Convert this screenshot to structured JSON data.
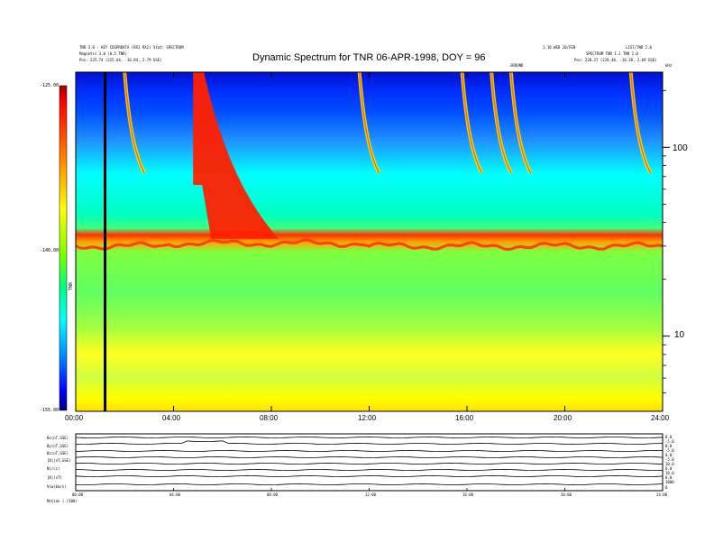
{
  "header": {
    "title": "Dynamic Spectrum for TNR 06-APR-1998, DOY = 96",
    "left_line1": "TNR 3.0 - KEY CDSPRDATA (RX1 RX2) Stat: SPECTRUM",
    "left_line2": "Magnetic 3.0 (0.5 TNR)",
    "left_pos": "Pos:   225.74 (225.64, -16.84, 2.79 GSE)",
    "right_line1": "1.10 WED 20/FEB",
    "right_line2": "LIST/TNR 2.0",
    "right_line3": "SPECTRUM   TNR 1.2 TNR  2.0",
    "right_pos": "Pos:   228.27 (228.48, -16.38, 2.69 GSE)",
    "mid_label": "GROUND",
    "unit_label": "kHz"
  },
  "colorbar": {
    "ticks": [
      "-125.00",
      "-140.00",
      "-155.00"
    ],
    "label": "TNR",
    "colors": [
      "#a00000",
      "#ff0000",
      "#ff8000",
      "#ffff00",
      "#80ff00",
      "#00ff80",
      "#00ffff",
      "#0080ff",
      "#0000ff",
      "#000080"
    ]
  },
  "chart_data": {
    "type": "heatmap",
    "title": "Dynamic Spectrum for TNR 06-APR-1998, DOY = 96",
    "xlabel": "",
    "ylabel": "kHz",
    "x_ticks": [
      "00:00",
      "04:00",
      "08:00",
      "12:00",
      "16:00",
      "20:00",
      "24:00"
    ],
    "xlim": [
      0,
      24
    ],
    "y_ticks": [
      "100",
      "10"
    ],
    "y_scale": "log",
    "ylim": [
      4,
      250
    ],
    "colorbar_range_db": [
      -155,
      -125
    ],
    "plasma_line_khz": 30,
    "marker_time_hours": 1.2,
    "type_iii_bursts_start_hours": [
      2.0,
      4.8,
      11.6,
      15.8,
      17.0,
      17.8,
      22.7
    ],
    "strong_burst_start_hours": 4.8
  },
  "bottom_panel": {
    "labels": [
      "Bx(nT,GSE)",
      "By(nT,GSE)",
      "Bz(nT,GSE)",
      "|B|(nT,GSE)",
      "N(/cc)",
      "|B|(nT)",
      "Vsw(km/s)"
    ],
    "right_labels": [
      "0.0",
      "-5.0",
      "0.0",
      "-5.0",
      "0.0",
      "-5.0",
      "10.0",
      "0.0",
      "10.0",
      "0.0",
      "1000",
      "0"
    ],
    "x_ticks": [
      "00:00",
      "04:00",
      "08:00",
      "12:00",
      "16:00",
      "20:00",
      "24:00"
    ],
    "footer": "Motion ( /100)"
  }
}
